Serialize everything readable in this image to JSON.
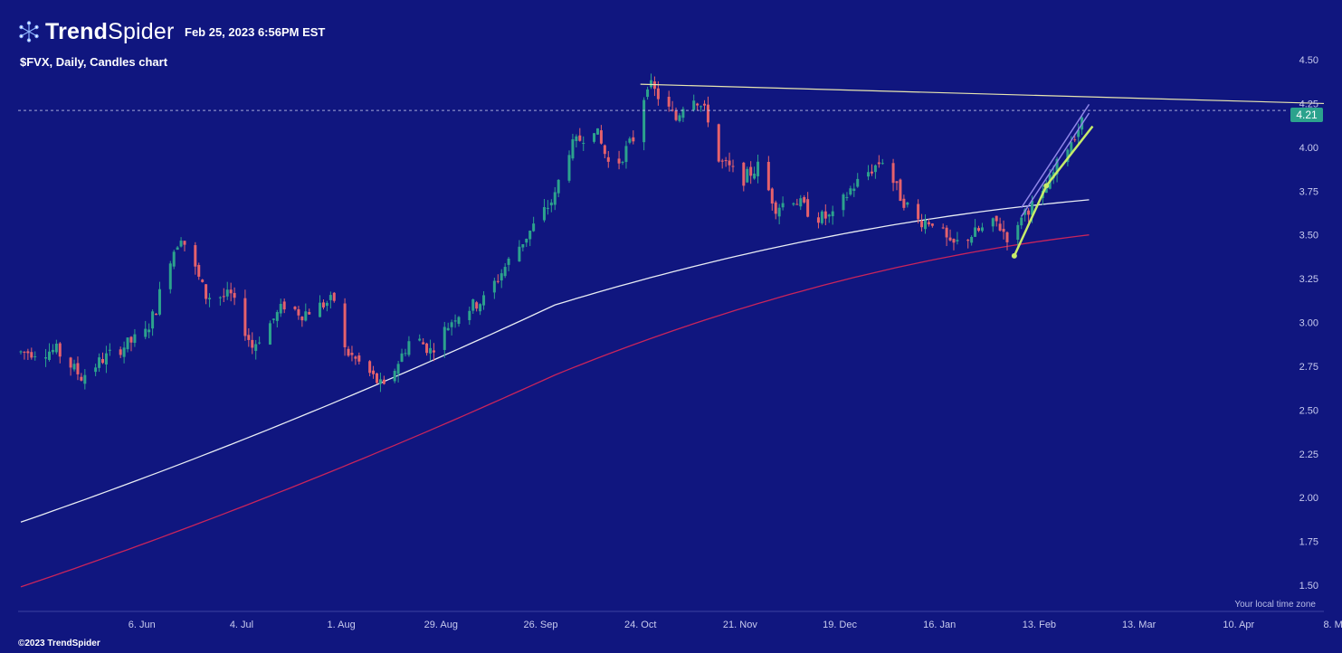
{
  "header": {
    "brand_bold": "Trend",
    "brand_light": "Spider",
    "timestamp": "Feb 25, 2023 6:56PM EST",
    "subtitle": "$FVX, Daily, Candles chart"
  },
  "footer": {
    "copyright": "©2023 TrendSpider",
    "timezone_note": "Your local time zone"
  },
  "current_price_label": "4.21",
  "colors": {
    "background": "#10167f",
    "up": "#2ca28d",
    "down": "#e5616c",
    "sma_fast": "#e8ecf4",
    "sma_slow": "#c8245c",
    "trendline": "#e8e6b0",
    "channel": "#8f86e8",
    "support": "#c6eb6a",
    "axis_text": "#c8cbef"
  },
  "chart_data": {
    "type": "candlestick",
    "x_ticks": [
      "6. Jun",
      "4. Jul",
      "1. Aug",
      "29. Aug",
      "26. Sep",
      "24. Oct",
      "21. Nov",
      "19. Dec",
      "16. Jan",
      "13. Feb",
      "13. Mar",
      "10. Apr",
      "8. May"
    ],
    "x_tick_days": [
      34,
      62,
      90,
      118,
      146,
      174,
      202,
      230,
      258,
      286,
      314,
      342,
      370
    ],
    "y_ticks": [
      "4.50",
      "4.25",
      "4.00",
      "3.75",
      "3.50",
      "3.25",
      "3.00",
      "2.75",
      "2.50",
      "2.25",
      "2.00",
      "1.75",
      "1.50"
    ],
    "ylim": [
      1.43,
      4.53
    ],
    "current_price": 4.21,
    "anchors": [
      [
        0,
        2.83
      ],
      [
        10,
        2.84
      ],
      [
        17,
        2.69
      ],
      [
        23,
        2.79
      ],
      [
        35,
        2.94
      ],
      [
        38,
        3.08
      ],
      [
        41,
        3.33
      ],
      [
        45,
        3.5
      ],
      [
        52,
        3.15
      ],
      [
        59,
        3.15
      ],
      [
        65,
        2.86
      ],
      [
        74,
        3.1
      ],
      [
        79,
        3.05
      ],
      [
        88,
        3.13
      ],
      [
        91,
        2.84
      ],
      [
        96,
        2.75
      ],
      [
        102,
        2.62
      ],
      [
        110,
        2.93
      ],
      [
        115,
        2.84
      ],
      [
        122,
        3.04
      ],
      [
        130,
        3.13
      ],
      [
        138,
        3.38
      ],
      [
        143,
        3.52
      ],
      [
        150,
        3.72
      ],
      [
        153,
        3.97
      ],
      [
        161,
        4.12
      ],
      [
        166,
        3.86
      ],
      [
        172,
        4.05
      ],
      [
        176,
        4.37
      ],
      [
        184,
        4.16
      ],
      [
        188,
        4.33
      ],
      [
        193,
        4.17
      ],
      [
        196,
        3.92
      ],
      [
        203,
        3.82
      ],
      [
        207,
        3.89
      ],
      [
        212,
        3.66
      ],
      [
        217,
        3.71
      ],
      [
        223,
        3.6
      ],
      [
        228,
        3.6
      ],
      [
        233,
        3.76
      ],
      [
        237,
        3.84
      ],
      [
        242,
        3.93
      ],
      [
        247,
        3.72
      ],
      [
        252,
        3.58
      ],
      [
        257,
        3.58
      ],
      [
        261,
        3.43
      ],
      [
        267,
        3.5
      ],
      [
        274,
        3.57
      ],
      [
        279,
        3.44
      ],
      [
        281,
        3.62
      ],
      [
        287,
        3.72
      ],
      [
        292,
        3.94
      ],
      [
        297,
        4.11
      ],
      [
        300,
        4.21
      ]
    ],
    "sma_fast": {
      "start": 1.86,
      "mid_day": 150,
      "mid": 3.1,
      "end": 3.7
    },
    "sma_slow": {
      "start": 1.49,
      "mid_day": 150,
      "mid": 2.7,
      "end": 3.5
    },
    "trendline": {
      "from": [
        174,
        4.36
      ],
      "to": [
        1463,
        4.25
      ]
    },
    "channel": {
      "from": [
        281,
        3.63
      ],
      "to": [
        300,
        4.22
      ],
      "offset": 0.025
    },
    "support_line": {
      "points": [
        [
          279,
          3.38
        ],
        [
          288,
          3.78
        ],
        [
          301,
          4.12
        ]
      ]
    },
    "horizontal_level": 4.21
  }
}
